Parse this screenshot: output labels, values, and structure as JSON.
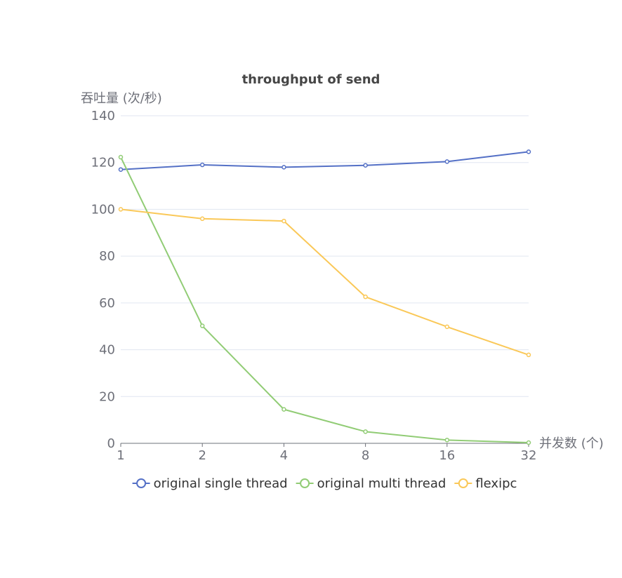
{
  "chart_data": {
    "type": "line",
    "title": "throughput of send",
    "xlabel": "并发数 (个)",
    "ylabel": "吞吐量 (次/秒)",
    "categories": [
      "1",
      "2",
      "4",
      "8",
      "16",
      "32"
    ],
    "ylim": [
      0,
      140
    ],
    "yticks": [
      0,
      20,
      40,
      60,
      80,
      100,
      120,
      140
    ],
    "grid": true,
    "legend_position": "bottom",
    "series": [
      {
        "name": "original single thread",
        "color": "#5470c6",
        "values": [
          117,
          119,
          118,
          118.8,
          120.4,
          124.6
        ]
      },
      {
        "name": "original multi thread",
        "color": "#91cc75",
        "values": [
          122.3,
          50.2,
          14.5,
          5,
          1.4,
          0.3
        ]
      },
      {
        "name": "flexipc",
        "color": "#fac858",
        "values": [
          100,
          96,
          95,
          62.6,
          49.8,
          37.8
        ]
      }
    ]
  }
}
